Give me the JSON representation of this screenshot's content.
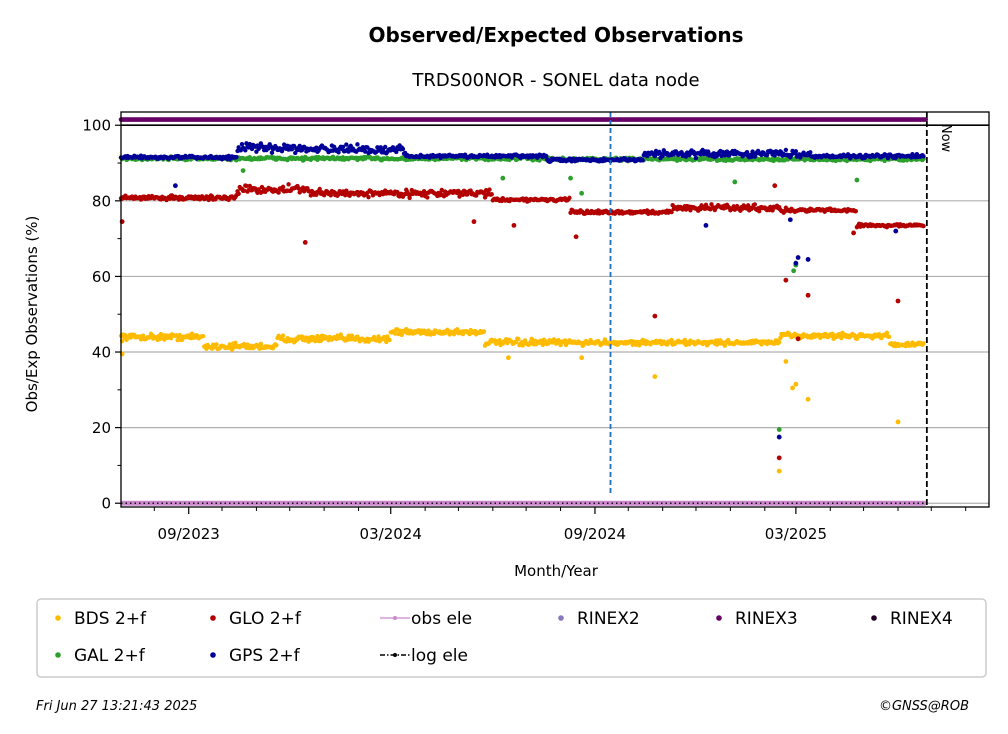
{
  "chart_data": {
    "type": "scatter",
    "title": "Observed/Expected Observations",
    "subtitle": "TRDS00NOR - SONEL data node",
    "xlabel": "Month/Year",
    "ylabel": "Obs/Exp Observations (%)",
    "ylim": [
      -1,
      103.5
    ],
    "xlim": [
      "2023-07-02",
      "2025-08-22"
    ],
    "yticks": [
      0,
      20,
      40,
      60,
      80,
      100
    ],
    "xticks": [
      {
        "date": "2023-09-01",
        "label": "09/2023"
      },
      {
        "date": "2024-03-01",
        "label": "03/2024"
      },
      {
        "date": "2024-09-01",
        "label": "09/2024"
      },
      {
        "date": "2025-03-01",
        "label": "03/2025"
      }
    ],
    "minor_xticks": [
      "2023-07-01",
      "2023-08-01",
      "2023-10-01",
      "2023-11-01",
      "2023-12-01",
      "2024-01-01",
      "2024-02-01",
      "2024-04-01",
      "2024-05-01",
      "2024-06-01",
      "2024-07-01",
      "2024-08-01",
      "2024-10-01",
      "2024-11-01",
      "2024-12-01",
      "2025-01-01",
      "2025-02-01",
      "2025-04-01",
      "2025-05-01",
      "2025-06-01",
      "2025-07-01",
      "2025-08-01"
    ],
    "grid": "horizontal",
    "now_label": "Now",
    "now_date": "2025-06-27",
    "event_line_date": "2024-09-15",
    "series": [
      {
        "name": "GPS 2+f",
        "color": "#000099",
        "segments": [
          {
            "start": "2023-07-02",
            "end": "2023-10-15",
            "base": 91.5,
            "jitter": 0.6
          },
          {
            "start": "2023-10-15",
            "end": "2024-01-05",
            "base": 94,
            "jitter": 1.6
          },
          {
            "start": "2024-01-05",
            "end": "2024-03-15",
            "base": 93.5,
            "jitter": 1.6
          },
          {
            "start": "2024-03-15",
            "end": "2024-07-20",
            "base": 91.8,
            "jitter": 0.6
          },
          {
            "start": "2024-07-20",
            "end": "2024-10-15",
            "base": 90.8,
            "jitter": 0.6
          },
          {
            "start": "2024-10-15",
            "end": "2025-03-15",
            "base": 92.5,
            "jitter": 1.3
          },
          {
            "start": "2025-03-15",
            "end": "2025-06-25",
            "base": 91.8,
            "jitter": 0.7
          }
        ],
        "outliers": [
          {
            "date": "2023-08-20",
            "y": 84
          },
          {
            "date": "2024-12-10",
            "y": 73.5
          },
          {
            "date": "2025-02-14",
            "y": 17.5
          },
          {
            "date": "2025-02-24",
            "y": 75
          },
          {
            "date": "2025-03-01",
            "y": 63.5
          },
          {
            "date": "2025-03-03",
            "y": 65
          },
          {
            "date": "2025-03-12",
            "y": 64.5
          },
          {
            "date": "2025-05-30",
            "y": 72
          }
        ]
      },
      {
        "name": "GAL 2+f",
        "color": "#2ca02c",
        "segments": [
          {
            "start": "2023-07-02",
            "end": "2024-07-20",
            "base": 91.2,
            "jitter": 0.7
          },
          {
            "start": "2024-07-20",
            "end": "2025-06-25",
            "base": 91,
            "jitter": 0.6
          }
        ],
        "outliers": [
          {
            "date": "2023-10-20",
            "y": 88
          },
          {
            "date": "2024-06-10",
            "y": 86
          },
          {
            "date": "2024-08-10",
            "y": 86
          },
          {
            "date": "2024-08-20",
            "y": 82
          },
          {
            "date": "2025-01-05",
            "y": 85
          },
          {
            "date": "2025-02-14",
            "y": 19.5
          },
          {
            "date": "2025-02-27",
            "y": 61.5
          },
          {
            "date": "2025-03-01",
            "y": 63
          },
          {
            "date": "2025-04-25",
            "y": 85.5
          }
        ]
      },
      {
        "name": "GLO 2+f",
        "color": "#b30000",
        "segments": [
          {
            "start": "2023-07-02",
            "end": "2023-10-15",
            "base": 80.8,
            "jitter": 0.8
          },
          {
            "start": "2023-10-15",
            "end": "2023-12-20",
            "base": 83,
            "jitter": 1.6
          },
          {
            "start": "2023-12-20",
            "end": "2024-06-01",
            "base": 82,
            "jitter": 1.3
          },
          {
            "start": "2024-06-01",
            "end": "2024-08-10",
            "base": 80.3,
            "jitter": 0.6
          },
          {
            "start": "2024-08-10",
            "end": "2024-11-10",
            "base": 77,
            "jitter": 0.7
          },
          {
            "start": "2024-11-10",
            "end": "2025-02-15",
            "base": 78.2,
            "jitter": 1.2
          },
          {
            "start": "2025-02-15",
            "end": "2025-04-25",
            "base": 77.5,
            "jitter": 0.8
          },
          {
            "start": "2025-04-25",
            "end": "2025-06-25",
            "base": 73.5,
            "jitter": 0.6
          }
        ],
        "outliers": [
          {
            "date": "2023-07-03",
            "y": 74.5
          },
          {
            "date": "2023-12-15",
            "y": 69
          },
          {
            "date": "2024-05-15",
            "y": 74.5
          },
          {
            "date": "2024-06-20",
            "y": 73.5
          },
          {
            "date": "2024-08-15",
            "y": 70.5
          },
          {
            "date": "2024-10-25",
            "y": 49.5
          },
          {
            "date": "2025-02-10",
            "y": 84
          },
          {
            "date": "2025-02-14",
            "y": 12
          },
          {
            "date": "2025-02-20",
            "y": 59
          },
          {
            "date": "2025-03-03",
            "y": 43.5
          },
          {
            "date": "2025-03-12",
            "y": 55
          },
          {
            "date": "2025-04-22",
            "y": 71.5
          },
          {
            "date": "2025-06-01",
            "y": 53.5
          }
        ]
      },
      {
        "name": "BDS 2+f",
        "color": "#ffbb00",
        "segments": [
          {
            "start": "2023-07-02",
            "end": "2023-09-15",
            "base": 44,
            "jitter": 1.2
          },
          {
            "start": "2023-09-15",
            "end": "2023-11-20",
            "base": 41.5,
            "jitter": 1.2
          },
          {
            "start": "2023-11-20",
            "end": "2024-03-01",
            "base": 43.5,
            "jitter": 1.3
          },
          {
            "start": "2024-03-01",
            "end": "2024-05-25",
            "base": 45.3,
            "jitter": 1.2
          },
          {
            "start": "2024-05-25",
            "end": "2024-09-01",
            "base": 42.5,
            "jitter": 1.2
          },
          {
            "start": "2024-09-01",
            "end": "2025-02-15",
            "base": 42.5,
            "jitter": 1.0
          },
          {
            "start": "2025-02-15",
            "end": "2025-05-25",
            "base": 44.3,
            "jitter": 1.0
          },
          {
            "start": "2025-05-25",
            "end": "2025-06-25",
            "base": 42,
            "jitter": 0.8
          }
        ],
        "outliers": [
          {
            "date": "2023-07-03",
            "y": 39.5
          },
          {
            "date": "2024-06-15",
            "y": 38.5
          },
          {
            "date": "2024-08-20",
            "y": 38.5
          },
          {
            "date": "2024-10-25",
            "y": 33.5
          },
          {
            "date": "2025-02-14",
            "y": 8.5
          },
          {
            "date": "2025-02-20",
            "y": 37.5
          },
          {
            "date": "2025-02-26",
            "y": 30.5
          },
          {
            "date": "2025-03-01",
            "y": 31.5
          },
          {
            "date": "2025-03-12",
            "y": 27.5
          },
          {
            "date": "2025-06-01",
            "y": 21.5
          }
        ]
      },
      {
        "name": "RINEX3",
        "color": "#660066",
        "level": 101.5,
        "start": "2023-07-02",
        "end": "2025-06-26"
      },
      {
        "name": "obs ele",
        "color": "#cc88cc",
        "level": 0,
        "start": "2023-07-02",
        "end": "2025-06-26"
      }
    ],
    "legend": [
      {
        "label": "BDS 2+f",
        "color": "#ffbb00",
        "style": "dot"
      },
      {
        "label": "GAL 2+f",
        "color": "#2ca02c",
        "style": "dot"
      },
      {
        "label": "GLO 2+f",
        "color": "#b30000",
        "style": "dot"
      },
      {
        "label": "GPS 2+f",
        "color": "#000099",
        "style": "dot"
      },
      {
        "label": "obs ele",
        "color": "#cc88cc",
        "style": "line-dot"
      },
      {
        "label": "log ele",
        "color": "#000000",
        "style": "dash-dot"
      },
      {
        "label": "RINEX2",
        "color": "#8877bb",
        "style": "dot"
      },
      {
        "label": "RINEX3",
        "color": "#660066",
        "style": "dot"
      },
      {
        "label": "RINEX4",
        "color": "#220022",
        "style": "dot"
      }
    ],
    "legend_position": "bottom"
  },
  "footer": {
    "timestamp": "Fri Jun 27 13:21:43 2025",
    "credit": "©GNSS@ROB"
  }
}
